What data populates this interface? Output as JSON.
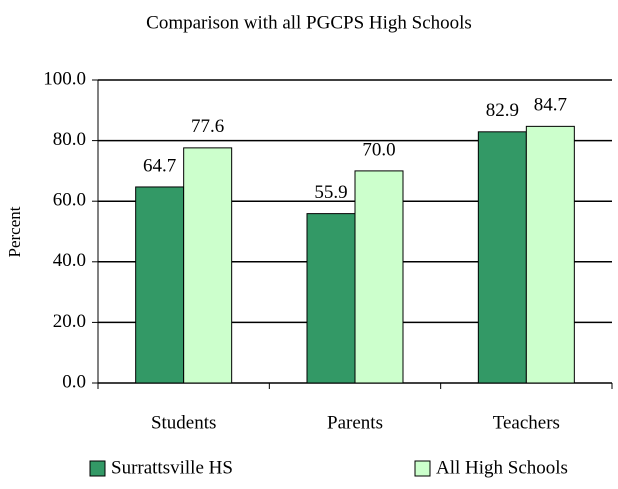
{
  "chart_data": {
    "type": "bar",
    "title": "Comparison with all PGCPS High Schools",
    "y_label": "Percent",
    "categories": [
      "Students",
      "Parents",
      "Teachers"
    ],
    "series": [
      {
        "name": "Surrattsville HS",
        "color": "#339966",
        "values": [
          64.7,
          55.9,
          82.9
        ],
        "value_labels": [
          "64.7",
          "55.9",
          "82.9"
        ]
      },
      {
        "name": "All High Schools",
        "color": "#ccffcc",
        "values": [
          77.6,
          70.0,
          84.7
        ],
        "value_labels": [
          "77.6",
          "70.0",
          "84.7"
        ]
      }
    ],
    "ylim": [
      0,
      100
    ],
    "yticks": [
      {
        "value": 0,
        "label": "0.0"
      },
      {
        "value": 20,
        "label": "20.0"
      },
      {
        "value": 40,
        "label": "40.0"
      },
      {
        "value": 60,
        "label": "60.0"
      },
      {
        "value": 80,
        "label": "80.0"
      },
      {
        "value": 100,
        "label": "100.0"
      }
    ],
    "grid": true,
    "legend": "bottom"
  }
}
